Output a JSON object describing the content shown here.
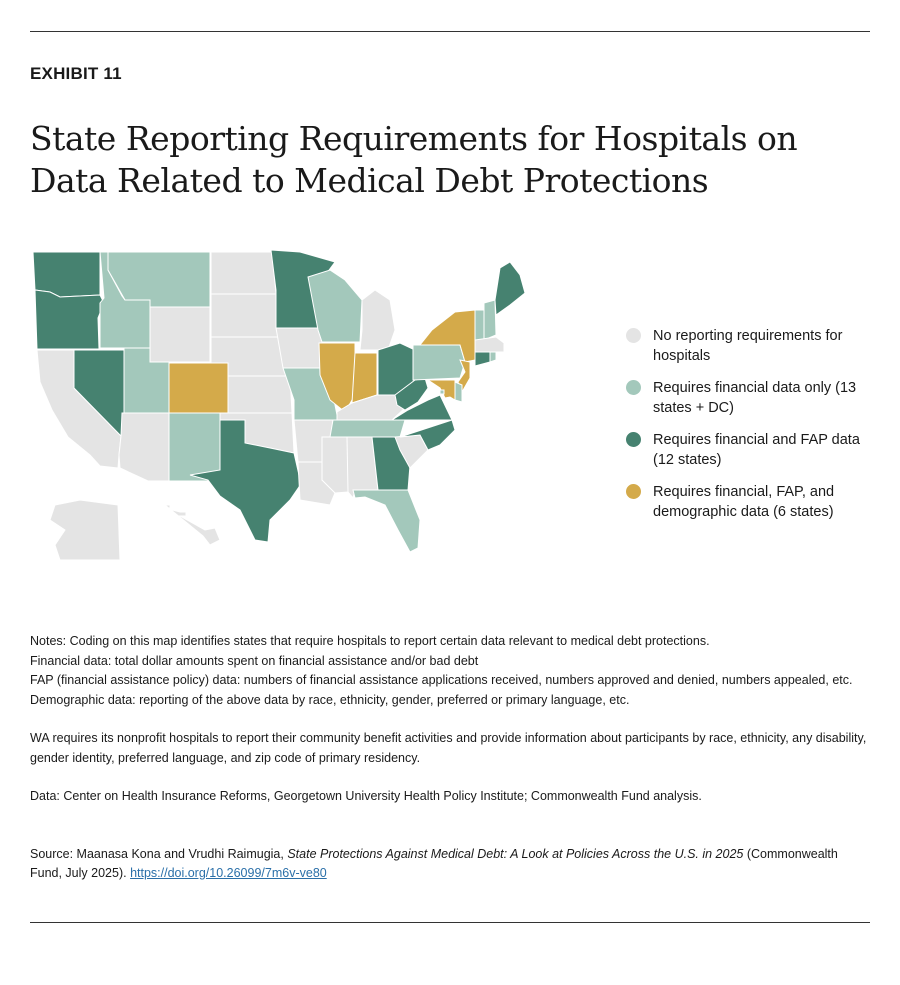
{
  "exhibit_label": "EXHIBIT 11",
  "title": "State Reporting Requirements for Hospitals on Data Related to Medical Debt Protections",
  "legend": [
    {
      "key": "none",
      "label": "No reporting requirements for hospitals",
      "color": "#e4e4e4"
    },
    {
      "key": "financial",
      "label": "Requires financial data only (13 states + DC)",
      "color": "#a3c8bb"
    },
    {
      "key": "fap",
      "label": "Requires financial and FAP data (12 states)",
      "color": "#468270"
    },
    {
      "key": "demo",
      "label": "Requires financial, FAP, and demographic data (6 states)",
      "color": "#d4aa4a"
    }
  ],
  "states": {
    "WA": "fap",
    "OR": "fap",
    "NV": "fap",
    "TX": "fap",
    "MN": "fap",
    "OH": "fap",
    "WV": "fap",
    "VA": "fap",
    "NC": "fap",
    "GA": "fap",
    "ME": "fap",
    "CT": "fap",
    "MT": "financial",
    "ID": "financial",
    "UT": "financial",
    "NM": "financial",
    "WI": "financial",
    "MO": "financial",
    "TN": "financial",
    "FL": "financial",
    "PA": "financial",
    "VT": "financial",
    "NH": "financial",
    "DE": "financial",
    "RI": "financial",
    "DC": "financial",
    "CO": "demo",
    "IL": "demo",
    "IN": "demo",
    "NY": "demo",
    "NJ": "demo",
    "MD": "demo",
    "CA": "none",
    "AZ": "none",
    "WY": "none",
    "ND": "none",
    "SD": "none",
    "NE": "none",
    "KS": "none",
    "OK": "none",
    "IA": "none",
    "AR": "none",
    "LA": "none",
    "MI": "none",
    "KY": "none",
    "MS": "none",
    "AL": "none",
    "SC": "none",
    "MA": "none",
    "AK": "none",
    "HI": "none"
  },
  "notes": [
    "Notes: Coding on this map identifies states that require hospitals to report certain data relevant to medical debt protections.",
    "Financial data: total dollar amounts spent on financial assistance and/or bad debt",
    "FAP (financial assistance policy) data: numbers of financial assistance applications received, numbers approved and denied, numbers appealed, etc.",
    "Demographic data: reporting of the above data by race, ethnicity, gender, preferred or primary language, etc."
  ],
  "wa_note": "WA requires its nonprofit hospitals to report their community benefit activities and provide information about participants by race, ethnicity, any disability, gender identity, preferred language, and zip code of primary residency.",
  "data_note": "Data: Center on Health Insurance Reforms, Georgetown University Health Policy Institute; Commonwealth Fund analysis.",
  "source": {
    "prefix": "Source: Maanasa Kona and Vrudhi Raimugia, ",
    "title_italic": "State Protections Against Medical Debt: A Look at Policies Across the U.S. in 2025",
    "suffix": " (Commonwealth Fund, July 2025). ",
    "link": "https://doi.org/10.26099/7m6v-ve80"
  }
}
